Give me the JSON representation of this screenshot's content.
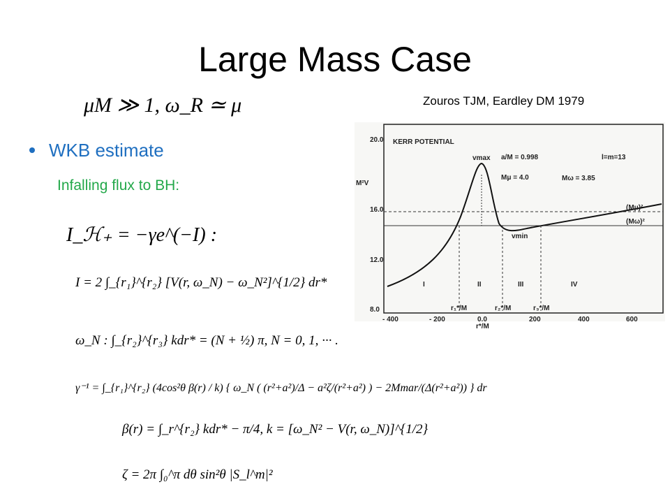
{
  "slide": {
    "title": "Large Mass Case",
    "citation": "Zouros TJM, Eardley DM  1979",
    "condition": "μM ≫ 1,    ω_R ≃ μ",
    "bullet": "WKB estimate",
    "sub_bullet": "Infalling flux to BH:",
    "equations": [
      "I_ℋ₊ = −γe^(−I)  :",
      "I = 2 ∫_{r₁}^{r₂} [V(r, ω_N) − ω_N²]^{1/2} dr*",
      "ω_N :   ∫_{r₂}^{r₃} kdr* = (N + ½) π,     N = 0, 1, ··· .",
      "γ⁻¹ = ∫_{r₁}^{r₂} (4cos²θ β(r) / k) { ω_N ( (r²+a²)/Δ − a²ζ/(r²+a²) ) − 2Mmar/(Δ(r²+a²)) } dr",
      "β(r) = ∫_r^{r₂} kdr* − π/4,    k = [ω_N² − V(r, ω_N)]^{1/2}",
      "ζ = 2π ∫₀^π dθ sin²θ |S_l^m|²"
    ],
    "figure": {
      "heading": "KERR POTENTIAL",
      "params": [
        "a/M = 0.998",
        "l=m=13",
        "Mμ = 4.0",
        "Mω = 3.85"
      ],
      "y_label": "M²V",
      "x_label": "r*/M",
      "y_ticks": [
        "20.0",
        "16.0",
        "12.0",
        "8.0"
      ],
      "x_ticks": [
        "- 400",
        "- 200",
        "0.0",
        "200",
        "400",
        "600"
      ],
      "peak": "vmax",
      "trough": "vmin",
      "levels": [
        "(Mμ)²",
        "(Mω)²"
      ],
      "regions": [
        "I",
        "II",
        "III",
        "IV"
      ],
      "turning_points": [
        "r₁*/M",
        "r₂*/M",
        "r₃*/M"
      ]
    }
  }
}
